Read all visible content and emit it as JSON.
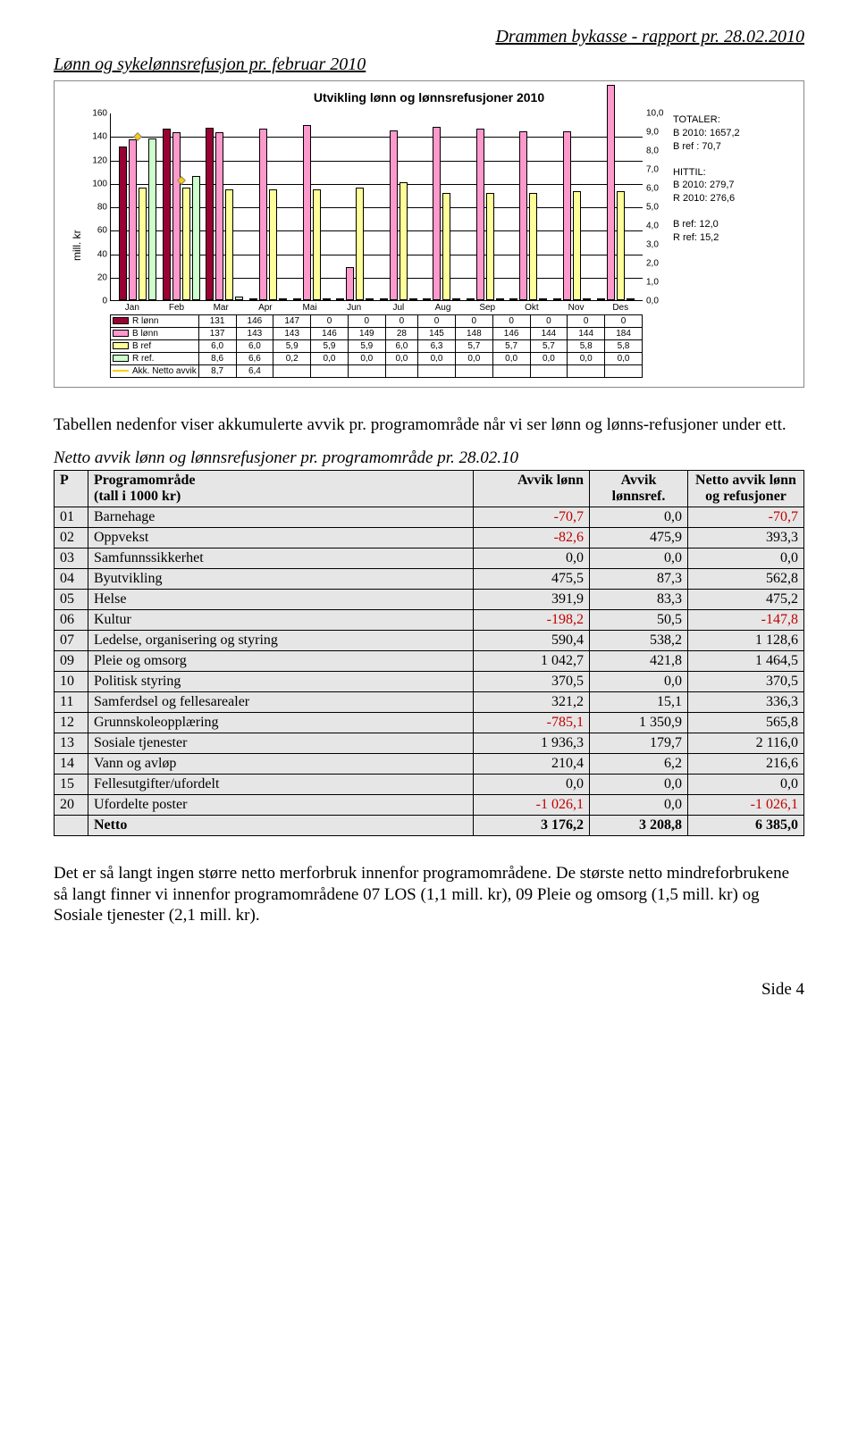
{
  "header_right": "Drammen bykasse - rapport pr. 28.02.2010",
  "section_title": "Lønn og sykelønnsrefusjon pr. februar 2010",
  "chart": {
    "title": "Utvikling lønn og lønnsrefusjoner 2010",
    "ylabel": "mill. kr",
    "months": [
      "Jan",
      "Feb",
      "Mar",
      "Apr",
      "Mai",
      "Jun",
      "Jul",
      "Aug",
      "Sep",
      "Okt",
      "Nov",
      "Des"
    ],
    "left_axis": {
      "min": 0,
      "max": 160,
      "step": 20
    },
    "right_axis": {
      "min": 0,
      "max": 10,
      "step": 1
    },
    "series": {
      "R_lonn": {
        "label": "R lønn",
        "color": "#990033",
        "type": "bar-left",
        "values": [
          131,
          146,
          147,
          0,
          0,
          0,
          0,
          0,
          0,
          0,
          0,
          0
        ]
      },
      "B_lonn": {
        "label": "B lønn",
        "color": "#ff99cc",
        "type": "bar-left",
        "values": [
          137,
          143,
          143,
          146,
          149,
          28,
          145,
          148,
          146,
          144,
          144,
          184
        ]
      },
      "B_ref": {
        "label": "B ref",
        "color": "#ffff99",
        "type": "bar-right",
        "values": [
          6.0,
          6.0,
          5.9,
          5.9,
          5.9,
          6.0,
          6.3,
          5.7,
          5.7,
          5.7,
          5.8,
          5.8
        ]
      },
      "R_ref": {
        "label": "R ref.",
        "color": "#ccffcc",
        "type": "bar-right",
        "values": [
          8.6,
          6.6,
          0.2,
          0.0,
          0.0,
          0.0,
          0.0,
          0.0,
          0.0,
          0.0,
          0.0,
          0.0
        ]
      },
      "Akk": {
        "label": "Akk. Netto avvik",
        "color": "#ffcc00",
        "type": "line-right",
        "values": [
          8.7,
          6.4,
          null,
          null,
          null,
          null,
          null,
          null,
          null,
          null,
          null,
          null
        ]
      }
    },
    "colors": {
      "grid": "#000000",
      "background": "#ffffff"
    },
    "annotations": {
      "totaler_title": "TOTALER:",
      "totaler_l1": "B 2010: 1657,2",
      "totaler_l2": "B ref   :    70,7",
      "hittil_title": "HITTIL:",
      "hittil_l1": "B 2010: 279,7",
      "hittil_l2": "R 2010: 276,6",
      "ref_l1": "B ref: 12,0",
      "ref_l2": "R ref: 15,2"
    }
  },
  "para1": "Tabellen nedenfor viser akkumulerte avvik pr. programområde når vi ser lønn og lønns-refusjoner under ett.",
  "table_caption": "Netto avvik lønn og lønnsrefusjoner  pr. programområde pr. 28.02.10",
  "table": {
    "head": {
      "c1": "P",
      "c2": "Programområde\n(tall i 1000 kr)",
      "c3": "Avvik    lønn",
      "c4": "Avvik lønnsref.",
      "c5": "Netto avvik lønn og refusjoner"
    },
    "rows": [
      {
        "p": "01",
        "name": "Barnehage",
        "a": "-70,7",
        "b": "0,0",
        "c": "-70,7",
        "neg_a": true,
        "neg_c": true
      },
      {
        "p": "02",
        "name": "Oppvekst",
        "a": "-82,6",
        "b": "475,9",
        "c": "393,3",
        "neg_a": true
      },
      {
        "p": "03",
        "name": "Samfunnssikkerhet",
        "a": "0,0",
        "b": "0,0",
        "c": "0,0"
      },
      {
        "p": "04",
        "name": "Byutvikling",
        "a": "475,5",
        "b": "87,3",
        "c": "562,8"
      },
      {
        "p": "05",
        "name": "Helse",
        "a": "391,9",
        "b": "83,3",
        "c": "475,2"
      },
      {
        "p": "06",
        "name": "Kultur",
        "a": "-198,2",
        "b": "50,5",
        "c": "-147,8",
        "neg_a": true,
        "neg_c": true
      },
      {
        "p": "07",
        "name": "Ledelse, organisering og styring",
        "a": "590,4",
        "b": "538,2",
        "c": "1 128,6"
      },
      {
        "p": "09",
        "name": "Pleie og omsorg",
        "a": "1 042,7",
        "b": "421,8",
        "c": "1 464,5"
      },
      {
        "p": "10",
        "name": "Politisk styring",
        "a": "370,5",
        "b": "0,0",
        "c": "370,5"
      },
      {
        "p": "11",
        "name": "Samferdsel og fellesarealer",
        "a": "321,2",
        "b": "15,1",
        "c": "336,3"
      },
      {
        "p": "12",
        "name": "Grunnskoleopplæring",
        "a": "-785,1",
        "b": "1 350,9",
        "c": "565,8",
        "neg_a": true
      },
      {
        "p": "13",
        "name": "Sosiale tjenester",
        "a": "1 936,3",
        "b": "179,7",
        "c": "2 116,0"
      },
      {
        "p": "14",
        "name": "Vann og avløp",
        "a": "210,4",
        "b": "6,2",
        "c": "216,6"
      },
      {
        "p": "15",
        "name": "Fellesutgifter/ufordelt",
        "a": "0,0",
        "b": "0,0",
        "c": "0,0"
      },
      {
        "p": "20",
        "name": "Ufordelte poster",
        "a": "-1 026,1",
        "b": "0,0",
        "c": "-1 026,1",
        "neg_a": true,
        "neg_c": true
      }
    ],
    "net": {
      "label": "Netto",
      "a": "3 176,2",
      "b": "3 208,8",
      "c": "6 385,0"
    }
  },
  "para2": "Det er så langt ingen større netto merforbruk innenfor programområdene. De største netto mindreforbrukene så langt finner vi innenfor programområdene 07 LOS (1,1 mill. kr), 09 Pleie og omsorg (1,5 mill. kr) og Sosiale tjenester  (2,1 mill. kr).",
  "footer": "Side 4"
}
